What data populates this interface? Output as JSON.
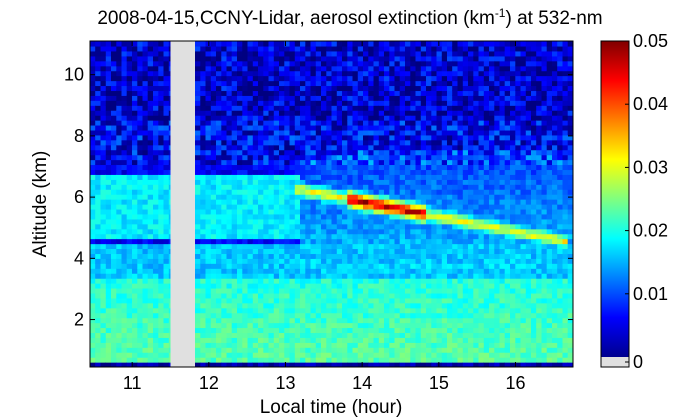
{
  "chart_data": {
    "type": "heatmap",
    "title_parts": {
      "prefix": "2008-04-15,CCNY-Lidar, aerosol extinction (km",
      "superscript": "-1",
      "suffix": ") at 532-nm"
    },
    "xlabel": "Local time (hour)",
    "ylabel": "Altitude (km)",
    "xlim": [
      10.45,
      16.75
    ],
    "ylim": [
      0.45,
      11.1
    ],
    "xticks": [
      11,
      12,
      13,
      14,
      15,
      16
    ],
    "yticks": [
      2,
      4,
      6,
      8,
      10
    ],
    "colorbar": {
      "range": [
        0,
        0.05
      ],
      "ticks": [
        "0",
        "0.01",
        "0.02",
        "0.03",
        "0.04",
        "0.05"
      ],
      "colormap": "jet",
      "nodata_color": "#e0e0e0"
    },
    "data_gap": {
      "x": [
        11.5,
        11.82
      ]
    },
    "features": [
      {
        "kind": "aerosol_layer",
        "x": [
          13.1,
          16.7
        ],
        "y_start": 6.3,
        "y_end": 4.55,
        "peak_value": 0.05,
        "typical_value": 0.028
      },
      {
        "kind": "boundary_layer",
        "x": [
          10.45,
          16.75
        ],
        "y": [
          0.6,
          3.3
        ],
        "typical_value": 0.023
      },
      {
        "kind": "residual_layer",
        "x": [
          10.45,
          13.2
        ],
        "y": [
          4.6,
          6.8
        ],
        "typical_value": 0.018
      }
    ]
  }
}
